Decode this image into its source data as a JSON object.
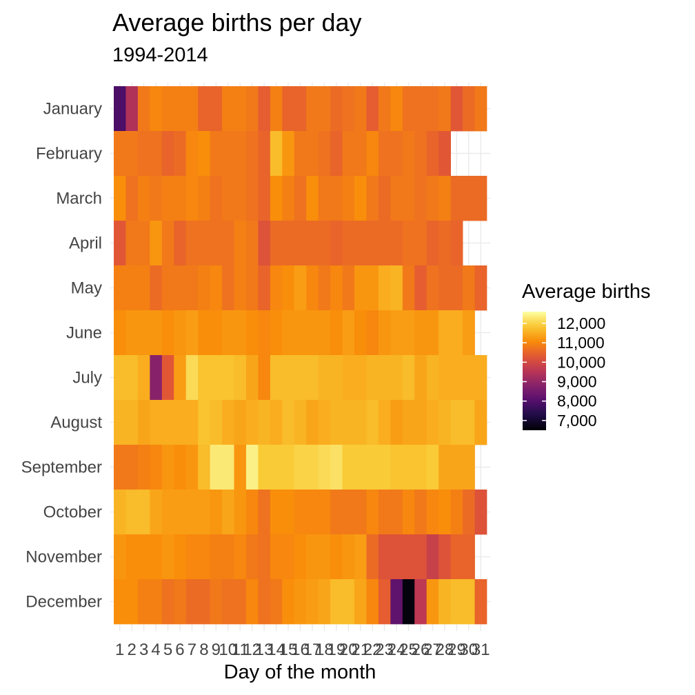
{
  "chart_data": {
    "type": "heatmap",
    "title": "Average births per day",
    "subtitle": "1994-2014",
    "xlabel": "Day of the month",
    "ylabel": "",
    "x_categories": [
      "1",
      "2",
      "3",
      "4",
      "5",
      "6",
      "7",
      "8",
      "9",
      "10",
      "11",
      "12",
      "13",
      "14",
      "15",
      "16",
      "17",
      "18",
      "19",
      "20",
      "21",
      "22",
      "23",
      "24",
      "25",
      "26",
      "27",
      "28",
      "29",
      "30",
      "31"
    ],
    "y_categories": [
      "January",
      "February",
      "March",
      "April",
      "May",
      "June",
      "July",
      "August",
      "September",
      "October",
      "November",
      "December"
    ],
    "color_scale": {
      "name": "Average births",
      "palette": "inferno",
      "range": [
        6500,
        12600
      ],
      "ticks": [
        12000,
        11000,
        10000,
        9000,
        8000,
        7000
      ],
      "tick_labels": [
        "12,000",
        "11,000",
        "10,000",
        "9,000",
        "8,000",
        "7,000"
      ]
    },
    "grid": true,
    "legend_position": "right",
    "values": [
      [
        7900,
        9400,
        10800,
        11000,
        10900,
        10900,
        10900,
        10500,
        10500,
        10900,
        10900,
        10800,
        10400,
        10900,
        10500,
        10500,
        10800,
        10800,
        10600,
        10700,
        10800,
        10400,
        10800,
        11000,
        10700,
        10700,
        10700,
        10800,
        10300,
        10600,
        10800
      ],
      [
        10800,
        10800,
        10700,
        10700,
        10500,
        10600,
        11000,
        11100,
        10800,
        10800,
        10800,
        10700,
        10500,
        11700,
        11200,
        10800,
        10800,
        10700,
        10500,
        10800,
        10800,
        11000,
        10700,
        10700,
        10800,
        10700,
        10500,
        10300,
        null,
        null,
        null
      ],
      [
        11100,
        10700,
        10900,
        10800,
        10900,
        10900,
        11000,
        10900,
        10700,
        10800,
        10800,
        10700,
        10500,
        11100,
        10900,
        10700,
        11100,
        10800,
        10800,
        10900,
        11100,
        10800,
        10600,
        10800,
        10800,
        10700,
        10800,
        10900,
        10600,
        10600,
        10600
      ],
      [
        10300,
        10800,
        10800,
        11200,
        10800,
        10500,
        10700,
        10700,
        10700,
        10700,
        10900,
        10800,
        10200,
        10600,
        10600,
        10600,
        10600,
        10600,
        10500,
        10600,
        10600,
        10600,
        10600,
        10600,
        10700,
        10700,
        10500,
        10600,
        10500,
        null,
        null
      ],
      [
        10900,
        10900,
        10900,
        10600,
        10800,
        10800,
        10800,
        10900,
        11000,
        10700,
        10900,
        10800,
        10500,
        11000,
        11100,
        11300,
        11000,
        10800,
        11000,
        10800,
        11200,
        11200,
        11500,
        11600,
        10800,
        10400,
        10700,
        10600,
        10600,
        10800,
        10500
      ],
      [
        11100,
        11200,
        11200,
        11200,
        11100,
        11200,
        11300,
        11100,
        11100,
        11200,
        11200,
        11100,
        11000,
        11100,
        11200,
        11200,
        11200,
        11200,
        11100,
        11300,
        11100,
        11000,
        11200,
        11300,
        11300,
        11200,
        11200,
        11500,
        11500,
        11300,
        null
      ],
      [
        11700,
        11700,
        11500,
        8800,
        10300,
        11300,
        12100,
        11800,
        11800,
        11800,
        11700,
        11400,
        11000,
        11700,
        11700,
        11700,
        11700,
        11600,
        11600,
        11500,
        11500,
        11600,
        11600,
        11600,
        11700,
        11400,
        11600,
        11500,
        11500,
        11500,
        11500
      ],
      [
        11600,
        11600,
        11400,
        11500,
        11500,
        11500,
        11500,
        11800,
        11700,
        11500,
        11400,
        11500,
        11600,
        11500,
        11700,
        11600,
        11400,
        11500,
        11600,
        11600,
        11600,
        11700,
        11500,
        11300,
        11400,
        11400,
        11500,
        11600,
        11700,
        11700,
        11400
      ],
      [
        10800,
        10800,
        10900,
        11000,
        11200,
        11100,
        11200,
        11700,
        12300,
        12300,
        11200,
        12400,
        11900,
        11900,
        11900,
        12000,
        12000,
        12100,
        12200,
        11900,
        11900,
        11900,
        11900,
        11800,
        11800,
        11800,
        11900,
        11400,
        11400,
        11400,
        null
      ],
      [
        11600,
        11700,
        11700,
        11400,
        11300,
        11300,
        11300,
        11300,
        11200,
        11400,
        11200,
        11000,
        10700,
        11100,
        11100,
        11000,
        11000,
        11000,
        10800,
        10800,
        10800,
        11000,
        10800,
        10800,
        11000,
        10800,
        11000,
        11100,
        10900,
        10600,
        10200
      ],
      [
        11200,
        11100,
        11100,
        11100,
        11200,
        11100,
        11000,
        11000,
        10900,
        10900,
        11000,
        10800,
        10700,
        11000,
        11000,
        11100,
        11200,
        11200,
        11100,
        11200,
        11300,
        10600,
        10200,
        10200,
        10200,
        10200,
        9800,
        10200,
        10500,
        10500,
        null
      ],
      [
        11100,
        11100,
        10900,
        10900,
        10700,
        10800,
        10600,
        10600,
        10800,
        10700,
        10700,
        11000,
        10700,
        10800,
        11100,
        11200,
        11300,
        11400,
        11700,
        11700,
        11400,
        11000,
        10400,
        8200,
        6600,
        9600,
        11200,
        11600,
        11700,
        11700,
        10500
      ]
    ]
  }
}
